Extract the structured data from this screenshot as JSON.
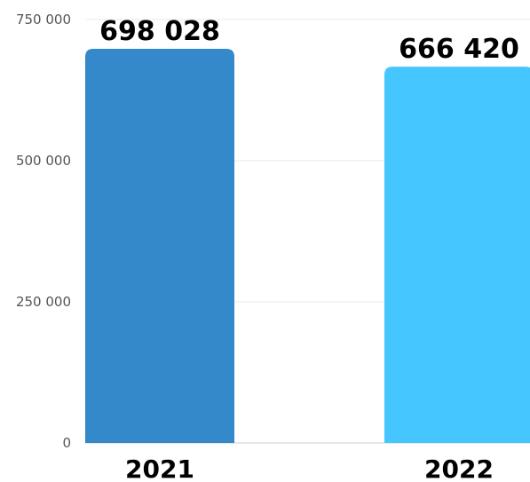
{
  "chart_data": {
    "type": "bar",
    "categories": [
      "2021",
      "2022"
    ],
    "values": [
      698028,
      666420
    ],
    "value_labels": [
      "698 028",
      "666 420"
    ],
    "yticks": [
      0,
      250000,
      500000,
      750000
    ],
    "ytick_labels": [
      "0",
      "250 000",
      "500 000",
      "750 000"
    ],
    "ylim": [
      0,
      750000
    ],
    "grid": true,
    "legend": "none",
    "colors": [
      "#3389C9",
      "#45C6FF"
    ]
  }
}
